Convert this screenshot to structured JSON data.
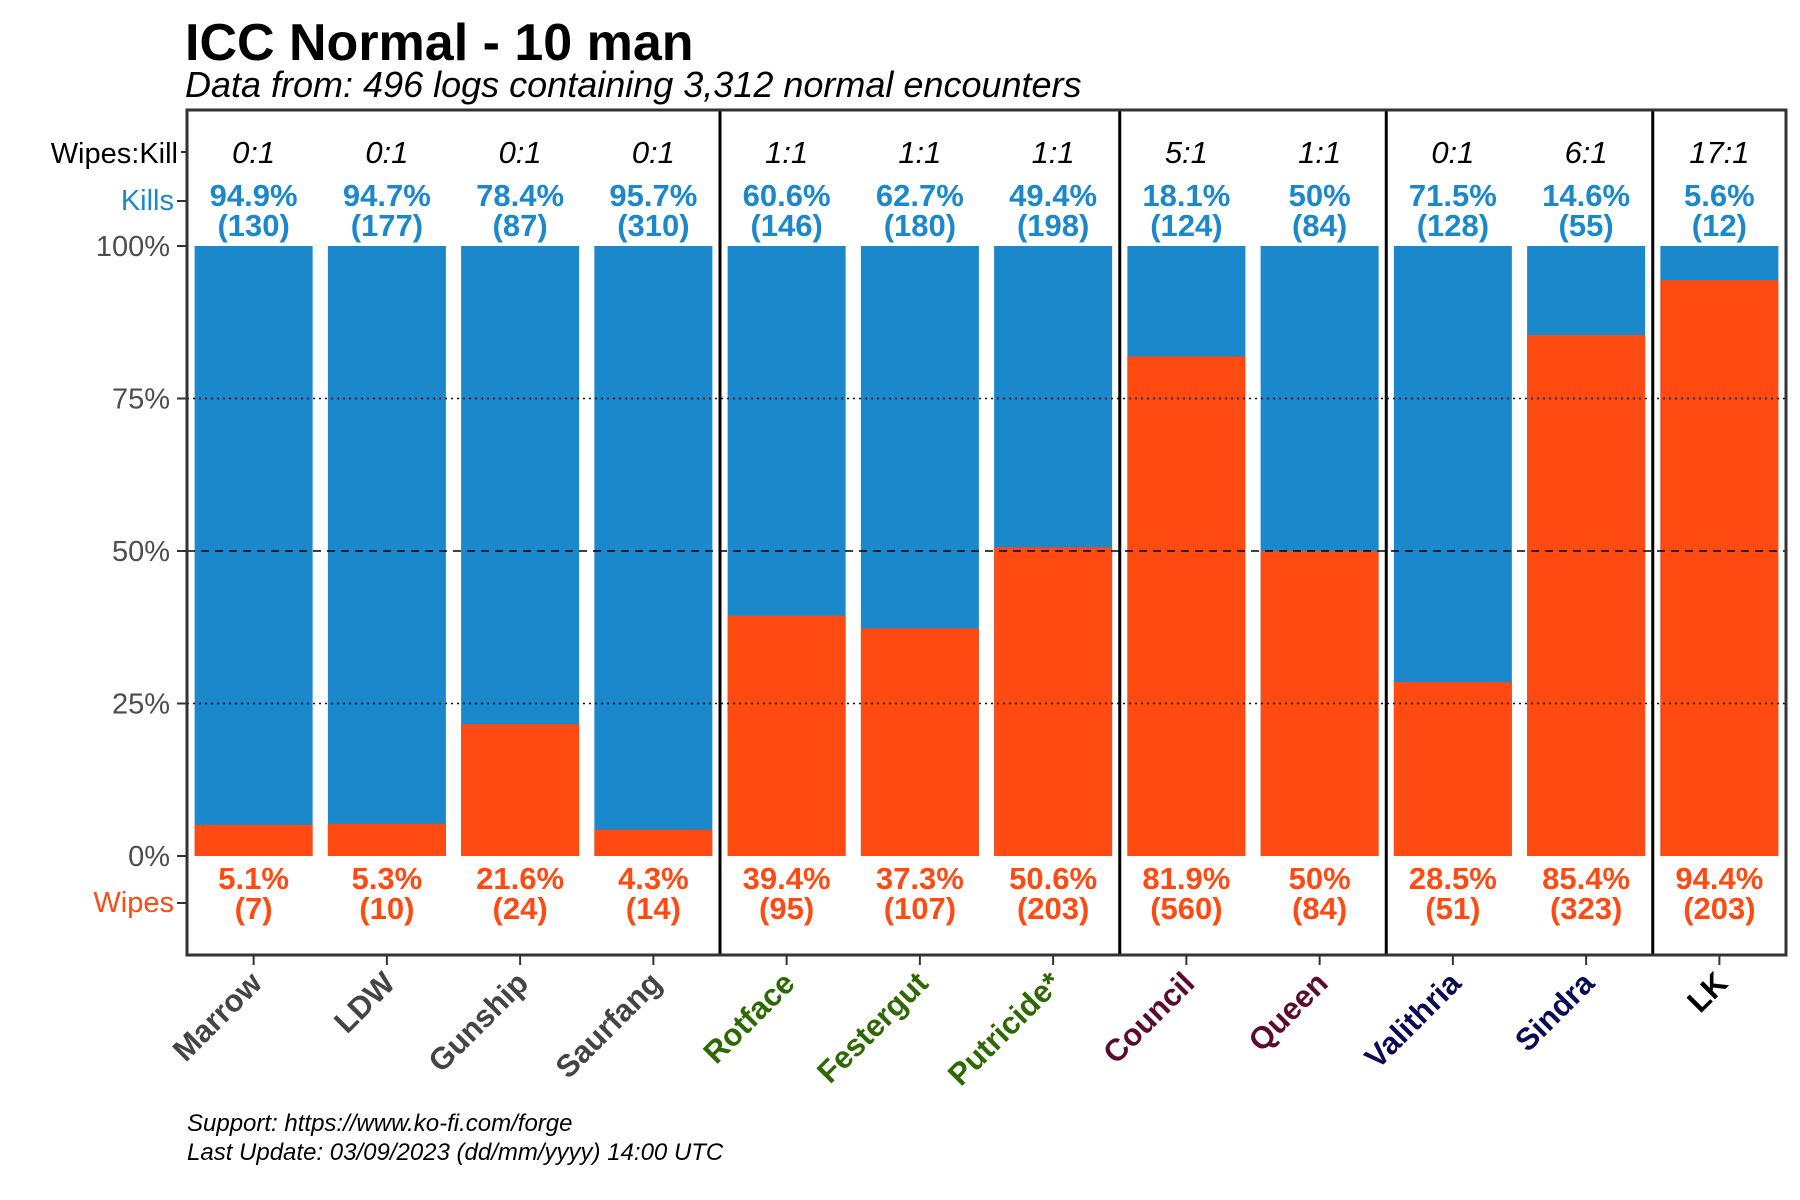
{
  "title": "ICC Normal - 10 man",
  "subtitle": "Data from: 496 logs containing 3,312 normal encounters",
  "caption": {
    "support": "Support: https://www.ko-fi.com/forge",
    "updated": "Last Update: 03/09/2023 (dd/mm/yyyy) 14:00 UTC"
  },
  "row_labels": {
    "ratio": "Wipes:Kill",
    "kills": "Kills",
    "wipes": "Wipes"
  },
  "colors": {
    "kills": "#1b88cb",
    "wipes": "#ff4a12",
    "wing_lower": "#444444",
    "wing_plague": "#2e6900",
    "wing_crimson": "#5c0a2e",
    "wing_frost": "#0b0b55",
    "wing_throne": "#000000"
  },
  "chart_data": {
    "type": "bar",
    "stacked": true,
    "percent": true,
    "ylim": [
      0,
      100
    ],
    "yticks": [
      "0%",
      "25%",
      "50%",
      "75%",
      "100%"
    ],
    "gridlines": [
      {
        "y": 25,
        "style": "dotted"
      },
      {
        "y": 50,
        "style": "dashed"
      },
      {
        "y": 75,
        "style": "dotted"
      }
    ],
    "categories": [
      "Marrow",
      "LDW",
      "Gunship",
      "Saurfang",
      "Rotface",
      "Festergut",
      "Putricide*",
      "Council",
      "Queen",
      "Valithria",
      "Sindra",
      "LK"
    ],
    "category_colors": [
      "wing_lower",
      "wing_lower",
      "wing_lower",
      "wing_lower",
      "wing_plague",
      "wing_plague",
      "wing_plague",
      "wing_crimson",
      "wing_crimson",
      "wing_frost",
      "wing_frost",
      "wing_throne"
    ],
    "group_dividers_after": [
      3,
      6,
      8,
      10
    ],
    "ratios": [
      "0:1",
      "0:1",
      "0:1",
      "0:1",
      "1:1",
      "1:1",
      "1:1",
      "5:1",
      "1:1",
      "0:1",
      "6:1",
      "17:1"
    ],
    "series": [
      {
        "name": "Kills",
        "values": [
          94.9,
          94.7,
          78.4,
          95.7,
          60.6,
          62.7,
          49.4,
          18.1,
          50,
          71.5,
          14.6,
          5.6
        ],
        "labels": [
          "94.9%",
          "94.7%",
          "78.4%",
          "95.7%",
          "60.6%",
          "62.7%",
          "49.4%",
          "18.1%",
          "50%",
          "71.5%",
          "14.6%",
          "5.6%"
        ],
        "counts": [
          "(130)",
          "(177)",
          "(87)",
          "(310)",
          "(146)",
          "(180)",
          "(198)",
          "(124)",
          "(84)",
          "(128)",
          "(55)",
          "(12)"
        ]
      },
      {
        "name": "Wipes",
        "values": [
          5.1,
          5.3,
          21.6,
          4.3,
          39.4,
          37.3,
          50.6,
          81.9,
          50,
          28.5,
          85.4,
          94.4
        ],
        "labels": [
          "5.1%",
          "5.3%",
          "21.6%",
          "4.3%",
          "39.4%",
          "37.3%",
          "50.6%",
          "81.9%",
          "50%",
          "28.5%",
          "85.4%",
          "94.4%"
        ],
        "counts": [
          "(7)",
          "(10)",
          "(24)",
          "(14)",
          "(95)",
          "(107)",
          "(203)",
          "(560)",
          "(84)",
          "(51)",
          "(323)",
          "(203)"
        ]
      }
    ]
  }
}
